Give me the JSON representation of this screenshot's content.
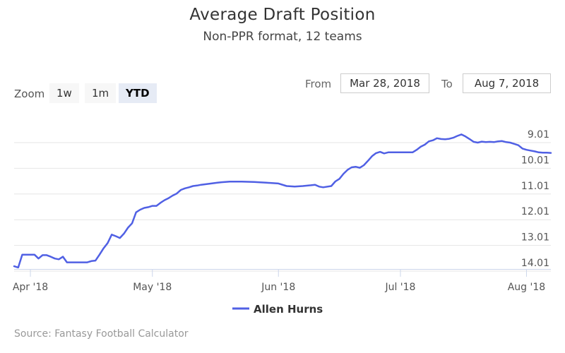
{
  "chart_data": {
    "type": "line",
    "title": "Average Draft Position",
    "subtitle": "Non-PPR format, 12 teams",
    "y_reversed": true,
    "ylim": [
      9.01,
      14.01
    ],
    "y_ticks": [
      9.01,
      10.01,
      11.01,
      12.01,
      13.01,
      14.01
    ],
    "y_tick_labels": [
      "9.01",
      "10.01",
      "11.01",
      "12.01",
      "13.01",
      "14.01"
    ],
    "x_ticks": [
      "2018-04-01",
      "2018-05-01",
      "2018-06-01",
      "2018-07-01",
      "2018-08-01"
    ],
    "x_tick_labels": [
      "Apr '18",
      "May '18",
      "Jun '18",
      "Jul '18",
      "Aug '18"
    ],
    "xlim": [
      "2018-03-28",
      "2018-08-07"
    ],
    "grid": true,
    "legend_position": "bottom",
    "series": [
      {
        "name": "Allen Hurns",
        "color": "#5060e4",
        "points": [
          [
            "2018-03-28",
            14.15
          ],
          [
            "2018-03-29",
            14.2
          ],
          [
            "2018-03-30",
            13.7
          ],
          [
            "2018-03-31",
            13.7
          ],
          [
            "2018-04-01",
            13.7
          ],
          [
            "2018-04-02",
            13.7
          ],
          [
            "2018-04-03",
            13.85
          ],
          [
            "2018-04-04",
            13.72
          ],
          [
            "2018-04-05",
            13.72
          ],
          [
            "2018-04-06",
            13.78
          ],
          [
            "2018-04-07",
            13.85
          ],
          [
            "2018-04-08",
            13.88
          ],
          [
            "2018-04-09",
            13.78
          ],
          [
            "2018-04-10",
            14.0
          ],
          [
            "2018-04-11",
            14.0
          ],
          [
            "2018-04-12",
            14.0
          ],
          [
            "2018-04-13",
            14.0
          ],
          [
            "2018-04-14",
            14.0
          ],
          [
            "2018-04-15",
            14.0
          ],
          [
            "2018-04-16",
            13.95
          ],
          [
            "2018-04-17",
            13.93
          ],
          [
            "2018-04-18",
            13.7
          ],
          [
            "2018-04-19",
            13.45
          ],
          [
            "2018-04-20",
            13.25
          ],
          [
            "2018-04-21",
            12.92
          ],
          [
            "2018-04-22",
            12.98
          ],
          [
            "2018-04-23",
            13.05
          ],
          [
            "2018-04-24",
            12.88
          ],
          [
            "2018-04-25",
            12.65
          ],
          [
            "2018-04-26",
            12.48
          ],
          [
            "2018-04-27",
            12.05
          ],
          [
            "2018-04-28",
            11.95
          ],
          [
            "2018-04-29",
            11.88
          ],
          [
            "2018-04-30",
            11.85
          ],
          [
            "2018-05-01",
            11.8
          ],
          [
            "2018-05-02",
            11.8
          ],
          [
            "2018-05-03",
            11.68
          ],
          [
            "2018-05-04",
            11.58
          ],
          [
            "2018-05-05",
            11.5
          ],
          [
            "2018-05-06",
            11.4
          ],
          [
            "2018-05-07",
            11.32
          ],
          [
            "2018-05-08",
            11.18
          ],
          [
            "2018-05-09",
            11.12
          ],
          [
            "2018-05-10",
            11.08
          ],
          [
            "2018-05-11",
            11.03
          ],
          [
            "2018-05-12",
            11.01
          ],
          [
            "2018-05-13",
            10.98
          ],
          [
            "2018-05-14",
            10.96
          ],
          [
            "2018-05-15",
            10.94
          ],
          [
            "2018-05-16",
            10.92
          ],
          [
            "2018-05-17",
            10.9
          ],
          [
            "2018-05-18",
            10.88
          ],
          [
            "2018-05-20",
            10.86
          ],
          [
            "2018-05-23",
            10.86
          ],
          [
            "2018-05-26",
            10.87
          ],
          [
            "2018-05-29",
            10.9
          ],
          [
            "2018-06-01",
            10.93
          ],
          [
            "2018-06-03",
            11.03
          ],
          [
            "2018-06-05",
            11.05
          ],
          [
            "2018-06-07",
            11.03
          ],
          [
            "2018-06-09",
            11.0
          ],
          [
            "2018-06-10",
            10.98
          ],
          [
            "2018-06-11",
            11.05
          ],
          [
            "2018-06-12",
            11.08
          ],
          [
            "2018-06-14",
            11.03
          ],
          [
            "2018-06-15",
            10.85
          ],
          [
            "2018-06-16",
            10.75
          ],
          [
            "2018-06-17",
            10.55
          ],
          [
            "2018-06-18",
            10.4
          ],
          [
            "2018-06-19",
            10.3
          ],
          [
            "2018-06-20",
            10.28
          ],
          [
            "2018-06-21",
            10.32
          ],
          [
            "2018-06-22",
            10.22
          ],
          [
            "2018-06-23",
            10.05
          ],
          [
            "2018-06-24",
            9.87
          ],
          [
            "2018-06-25",
            9.75
          ],
          [
            "2018-06-26",
            9.7
          ],
          [
            "2018-06-27",
            9.76
          ],
          [
            "2018-06-28",
            9.72
          ],
          [
            "2018-06-29",
            9.72
          ],
          [
            "2018-06-30",
            9.72
          ],
          [
            "2018-07-01",
            9.72
          ],
          [
            "2018-07-02",
            9.72
          ],
          [
            "2018-07-03",
            9.72
          ],
          [
            "2018-07-04",
            9.72
          ],
          [
            "2018-07-05",
            9.62
          ],
          [
            "2018-07-06",
            9.5
          ],
          [
            "2018-07-07",
            9.42
          ],
          [
            "2018-07-08",
            9.29
          ],
          [
            "2018-07-09",
            9.25
          ],
          [
            "2018-07-10",
            9.17
          ],
          [
            "2018-07-11",
            9.2
          ],
          [
            "2018-07-12",
            9.21
          ],
          [
            "2018-07-13",
            9.19
          ],
          [
            "2018-07-14",
            9.15
          ],
          [
            "2018-07-15",
            9.08
          ],
          [
            "2018-07-16",
            9.02
          ],
          [
            "2018-07-17",
            9.1
          ],
          [
            "2018-07-18",
            9.2
          ],
          [
            "2018-07-19",
            9.31
          ],
          [
            "2018-07-20",
            9.34
          ],
          [
            "2018-07-21",
            9.3
          ],
          [
            "2018-07-22",
            9.32
          ],
          [
            "2018-07-23",
            9.31
          ],
          [
            "2018-07-24",
            9.32
          ],
          [
            "2018-07-25",
            9.29
          ],
          [
            "2018-07-26",
            9.28
          ],
          [
            "2018-07-27",
            9.32
          ],
          [
            "2018-07-28",
            9.34
          ],
          [
            "2018-07-29",
            9.39
          ],
          [
            "2018-07-30",
            9.44
          ],
          [
            "2018-07-31",
            9.57
          ],
          [
            "2018-08-01",
            9.62
          ],
          [
            "2018-08-02",
            9.65
          ],
          [
            "2018-08-03",
            9.68
          ],
          [
            "2018-08-04",
            9.72
          ],
          [
            "2018-08-05",
            9.73
          ],
          [
            "2018-08-06",
            9.73
          ],
          [
            "2018-08-07",
            9.74
          ]
        ]
      }
    ]
  },
  "rangeSelector": {
    "zoom_label": "Zoom",
    "buttons": [
      {
        "label": "1w",
        "selected": false
      },
      {
        "label": "1m",
        "selected": false
      },
      {
        "label": "YTD",
        "selected": true
      }
    ],
    "from_label": "From",
    "from_value": "Mar 28, 2018",
    "to_label": "To",
    "to_value": "Aug 7, 2018"
  },
  "credits": "Source: Fantasy Football Calculator"
}
